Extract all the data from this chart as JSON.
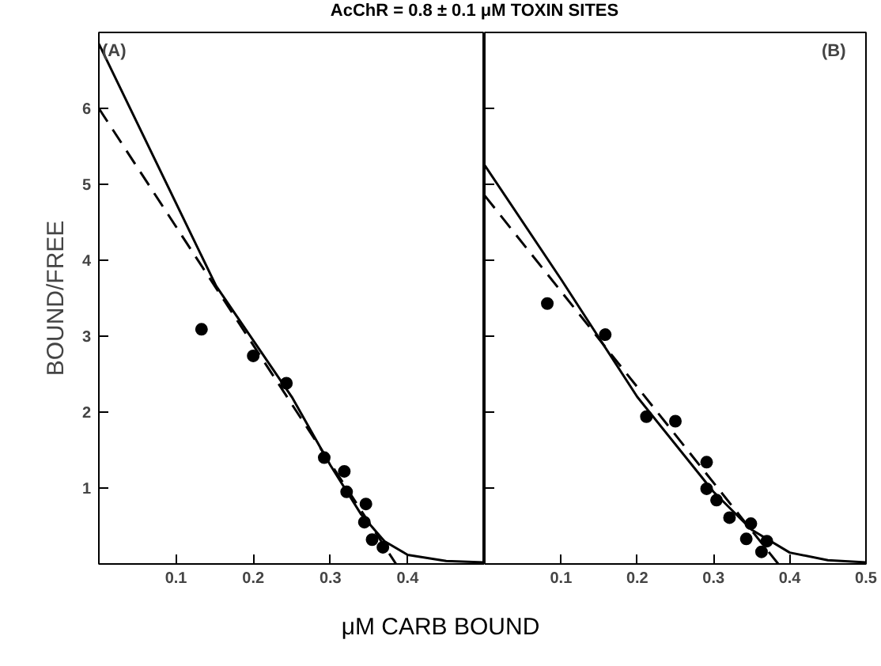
{
  "chart_data": [
    {
      "type": "scatter",
      "title": "AcChR = 0.8 ± 0.1 μM TOXIN SITES",
      "xlabel": "μM CARB BOUND",
      "ylabel": "BOUND/FREE",
      "annotations": [
        "(A)"
      ],
      "xlim": [
        0,
        0.5
      ],
      "ylim": [
        0,
        7
      ],
      "xticks": [
        0.1,
        0.2,
        0.3,
        0.4
      ],
      "yticks": [
        1,
        2,
        3,
        4,
        5,
        6
      ],
      "grid": false,
      "series": [
        {
          "marker": "circle",
          "color": "#000000",
          "x": [
            0.133,
            0.2,
            0.243,
            0.292,
            0.318,
            0.321,
            0.346,
            0.344,
            0.354,
            0.368
          ],
          "values": [
            3.09,
            2.74,
            2.38,
            1.4,
            1.22,
            0.95,
            0.79,
            0.55,
            0.32,
            0.22
          ]
        },
        {
          "type": "line",
          "line_style": "solid",
          "color": "#000000",
          "x": [
            0,
            0.152,
            0.25,
            0.3,
            0.34,
            0.37,
            0.4,
            0.45,
            0.5
          ],
          "values": [
            6.85,
            3.66,
            2.2,
            1.3,
            0.65,
            0.3,
            0.12,
            0.04,
            0.02
          ]
        },
        {
          "type": "line",
          "line_style": "dashed",
          "color": "#000000",
          "x": [
            0,
            0.385
          ],
          "values": [
            6.0,
            0
          ]
        }
      ]
    },
    {
      "type": "scatter",
      "annotations": [
        "(B)"
      ],
      "xlim": [
        0,
        0.5
      ],
      "ylim": [
        0,
        7
      ],
      "xticks": [
        0.1,
        0.2,
        0.3,
        0.4,
        0.5
      ],
      "yticks": [
        {
          "value": 1,
          "label": null
        },
        {
          "value": 2,
          "label": null
        },
        {
          "value": 3,
          "label": null
        },
        {
          "value": 4,
          "label": null
        },
        {
          "value": 5,
          "label": null
        },
        {
          "value": 6,
          "label": null
        }
      ],
      "tick_labels": "x",
      "grid": false,
      "series": [
        {
          "marker": "circle",
          "color": "#000000",
          "x": [
            0.082,
            0.158,
            0.212,
            0.25,
            0.291,
            0.291,
            0.304,
            0.321,
            0.349,
            0.343,
            0.37,
            0.363
          ],
          "values": [
            3.43,
            3.02,
            1.94,
            1.88,
            1.34,
            0.99,
            0.84,
            0.61,
            0.53,
            0.33,
            0.3,
            0.16
          ]
        },
        {
          "type": "line",
          "line_style": "solid",
          "color": "#000000",
          "x": [
            0,
            0.1,
            0.2,
            0.3,
            0.35,
            0.4,
            0.45,
            0.5
          ],
          "values": [
            5.25,
            3.75,
            2.2,
            0.95,
            0.45,
            0.15,
            0.05,
            0.02
          ]
        },
        {
          "type": "line",
          "line_style": "dashed",
          "color": "#000000",
          "x": [
            0,
            0.385
          ],
          "values": [
            4.85,
            0
          ]
        }
      ]
    }
  ]
}
